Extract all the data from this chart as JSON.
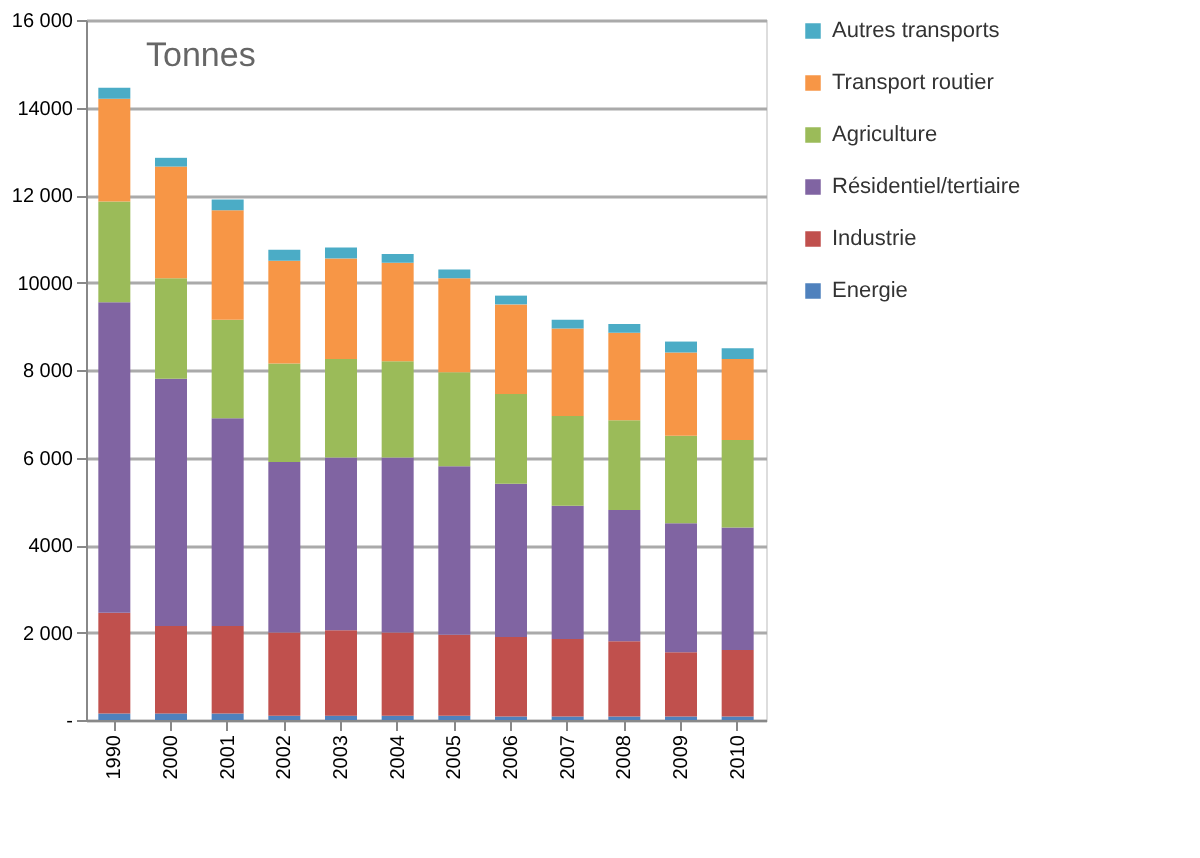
{
  "chart_data": {
    "type": "bar",
    "stacked": true,
    "annotations": [
      "Tonnes"
    ],
    "categories": [
      "1990",
      "2000",
      "2001",
      "2002",
      "2003",
      "2004",
      "2005",
      "2006",
      "2007",
      "2008",
      "2009",
      "2010"
    ],
    "series": [
      {
        "name": "Energie",
        "color": "#4f81bd",
        "values": [
          150,
          150,
          150,
          100,
          100,
          100,
          100,
          80,
          80,
          80,
          80,
          80
        ]
      },
      {
        "name": "Industrie",
        "color": "#c0504d",
        "values": [
          2300,
          2000,
          2000,
          1900,
          1950,
          1900,
          1850,
          1820,
          1770,
          1720,
          1470,
          1520
        ]
      },
      {
        "name": "Résidentiel/tertiaire",
        "color": "#8064a2",
        "values": [
          7100,
          5650,
          4750,
          3900,
          3950,
          4000,
          3850,
          3500,
          3050,
          3000,
          2950,
          2800
        ]
      },
      {
        "name": "Agriculture",
        "color": "#9bbb59",
        "values": [
          2300,
          2300,
          2250,
          2250,
          2250,
          2200,
          2150,
          2050,
          2050,
          2050,
          2000,
          2000
        ]
      },
      {
        "name": "Transport routier",
        "color": "#f79646",
        "values": [
          2350,
          2550,
          2500,
          2350,
          2300,
          2250,
          2150,
          2050,
          2000,
          2000,
          1900,
          1850
        ]
      },
      {
        "name": "Autres transports",
        "color": "#4bacc6",
        "values": [
          250,
          200,
          250,
          250,
          250,
          200,
          200,
          200,
          200,
          200,
          250,
          250
        ]
      }
    ],
    "ylim": [
      0,
      16000
    ],
    "yticks": [
      {
        "value": 0,
        "label": "-"
      },
      {
        "value": 2000,
        "label": "2 000"
      },
      {
        "value": 4000,
        "label": "4000"
      },
      {
        "value": 6000,
        "label": "6 000"
      },
      {
        "value": 8000,
        "label": "8 000"
      },
      {
        "value": 10000,
        "label": "10000"
      },
      {
        "value": 12000,
        "label": "12 000"
      },
      {
        "value": 14000,
        "label": "14000"
      },
      {
        "value": 16000,
        "label": "16 000"
      }
    ],
    "grid": "y",
    "legend": "right"
  }
}
